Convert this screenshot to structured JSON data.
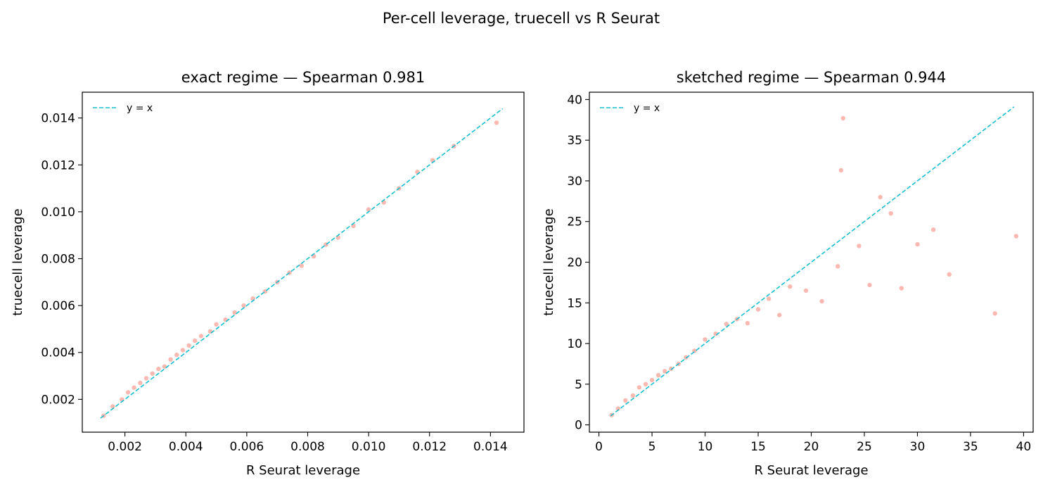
{
  "figure": {
    "suptitle": "Per-cell leverage, truecell vs R Seurat"
  },
  "colors": {
    "points": "#fa8072",
    "identity_line": "#17becf",
    "axes": "#000000"
  },
  "chart_data": [
    {
      "type": "scatter",
      "title": "exact regime — Spearman 0.981",
      "xlabel": "R Seurat leverage",
      "ylabel": "truecell leverage",
      "xlim": [
        0.0006,
        0.0151
      ],
      "ylim": [
        0.0006,
        0.0151
      ],
      "xticks": [
        0.002,
        0.004,
        0.006,
        0.008,
        0.01,
        0.012,
        0.014
      ],
      "xtick_labels": [
        "0.002",
        "0.004",
        "0.006",
        "0.008",
        "0.010",
        "0.012",
        "0.014"
      ],
      "yticks": [
        0.002,
        0.004,
        0.006,
        0.008,
        0.01,
        0.012,
        0.014
      ],
      "ytick_labels": [
        "0.002",
        "0.004",
        "0.006",
        "0.008",
        "0.010",
        "0.012",
        "0.014"
      ],
      "grid": false,
      "legend": {
        "placement": "upper-left",
        "entries": [
          "y = x"
        ]
      },
      "series": [
        {
          "kind": "points",
          "points": [
            [
              0.0013,
              0.0013
            ],
            [
              0.0016,
              0.0017
            ],
            [
              0.0019,
              0.002
            ],
            [
              0.0021,
              0.0023
            ],
            [
              0.0023,
              0.0025
            ],
            [
              0.0025,
              0.0027
            ],
            [
              0.0027,
              0.0029
            ],
            [
              0.0029,
              0.0031
            ],
            [
              0.0031,
              0.0033
            ],
            [
              0.0033,
              0.0034
            ],
            [
              0.0035,
              0.0037
            ],
            [
              0.0037,
              0.0039
            ],
            [
              0.0039,
              0.0041
            ],
            [
              0.0041,
              0.0043
            ],
            [
              0.0043,
              0.0045
            ],
            [
              0.0045,
              0.0047
            ],
            [
              0.0048,
              0.0049
            ],
            [
              0.005,
              0.0052
            ],
            [
              0.0053,
              0.0054
            ],
            [
              0.0056,
              0.0057
            ],
            [
              0.0059,
              0.006
            ],
            [
              0.0062,
              0.0063
            ],
            [
              0.0066,
              0.0066
            ],
            [
              0.007,
              0.007
            ],
            [
              0.0074,
              0.0074
            ],
            [
              0.0078,
              0.0077
            ],
            [
              0.0082,
              0.0081
            ],
            [
              0.0086,
              0.0086
            ],
            [
              0.009,
              0.0089
            ],
            [
              0.0095,
              0.0094
            ],
            [
              0.01,
              0.0101
            ],
            [
              0.0105,
              0.0104
            ],
            [
              0.011,
              0.011
            ],
            [
              0.0116,
              0.0117
            ],
            [
              0.0121,
              0.0122
            ],
            [
              0.0128,
              0.0128
            ],
            [
              0.0142,
              0.0138
            ]
          ]
        },
        {
          "kind": "line",
          "name": "y = x",
          "x": [
            0.0012,
            0.0144
          ],
          "y": [
            0.0012,
            0.0144
          ]
        }
      ]
    },
    {
      "type": "scatter",
      "title": "sketched regime — Spearman 0.944",
      "xlabel": "R Seurat leverage",
      "ylabel": "truecell leverage",
      "xlim": [
        -0.9,
        40.9
      ],
      "ylim": [
        -0.9,
        40.9
      ],
      "xticks": [
        0,
        5,
        10,
        15,
        20,
        25,
        30,
        35,
        40
      ],
      "xtick_labels": [
        "0",
        "5",
        "10",
        "15",
        "20",
        "25",
        "30",
        "35",
        "40"
      ],
      "yticks": [
        0,
        5,
        10,
        15,
        20,
        25,
        30,
        35,
        40
      ],
      "ytick_labels": [
        "0",
        "5",
        "10",
        "15",
        "20",
        "25",
        "30",
        "35",
        "40"
      ],
      "grid": false,
      "legend": {
        "placement": "upper-left",
        "entries": [
          "y = x"
        ]
      },
      "series": [
        {
          "kind": "points",
          "points": [
            [
              1.2,
              1.2
            ],
            [
              1.8,
              2.0
            ],
            [
              2.5,
              3.0
            ],
            [
              3.2,
              3.6
            ],
            [
              3.8,
              4.6
            ],
            [
              4.4,
              5.0
            ],
            [
              5.0,
              5.5
            ],
            [
              5.6,
              6.1
            ],
            [
              6.2,
              6.6
            ],
            [
              6.8,
              6.9
            ],
            [
              7.5,
              7.5
            ],
            [
              8.2,
              8.3
            ],
            [
              9.0,
              9.1
            ],
            [
              10.0,
              10.5
            ],
            [
              11.0,
              11.2
            ],
            [
              12.0,
              12.4
            ],
            [
              13.0,
              13.0
            ],
            [
              14.0,
              12.5
            ],
            [
              15.0,
              14.2
            ],
            [
              16.0,
              15.5
            ],
            [
              17.0,
              13.5
            ],
            [
              18.0,
              17.0
            ],
            [
              19.5,
              16.5
            ],
            [
              21.0,
              15.2
            ],
            [
              22.5,
              19.5
            ],
            [
              22.8,
              31.3
            ],
            [
              23.0,
              37.7
            ],
            [
              24.5,
              22.0
            ],
            [
              25.5,
              17.2
            ],
            [
              26.5,
              28.0
            ],
            [
              27.5,
              26.0
            ],
            [
              28.5,
              16.8
            ],
            [
              30.0,
              22.2
            ],
            [
              31.5,
              24.0
            ],
            [
              33.0,
              18.5
            ],
            [
              37.3,
              13.7
            ],
            [
              39.3,
              23.2
            ]
          ]
        },
        {
          "kind": "line",
          "name": "y = x",
          "x": [
            1.1,
            39.1
          ],
          "y": [
            1.1,
            39.1
          ]
        }
      ]
    }
  ]
}
